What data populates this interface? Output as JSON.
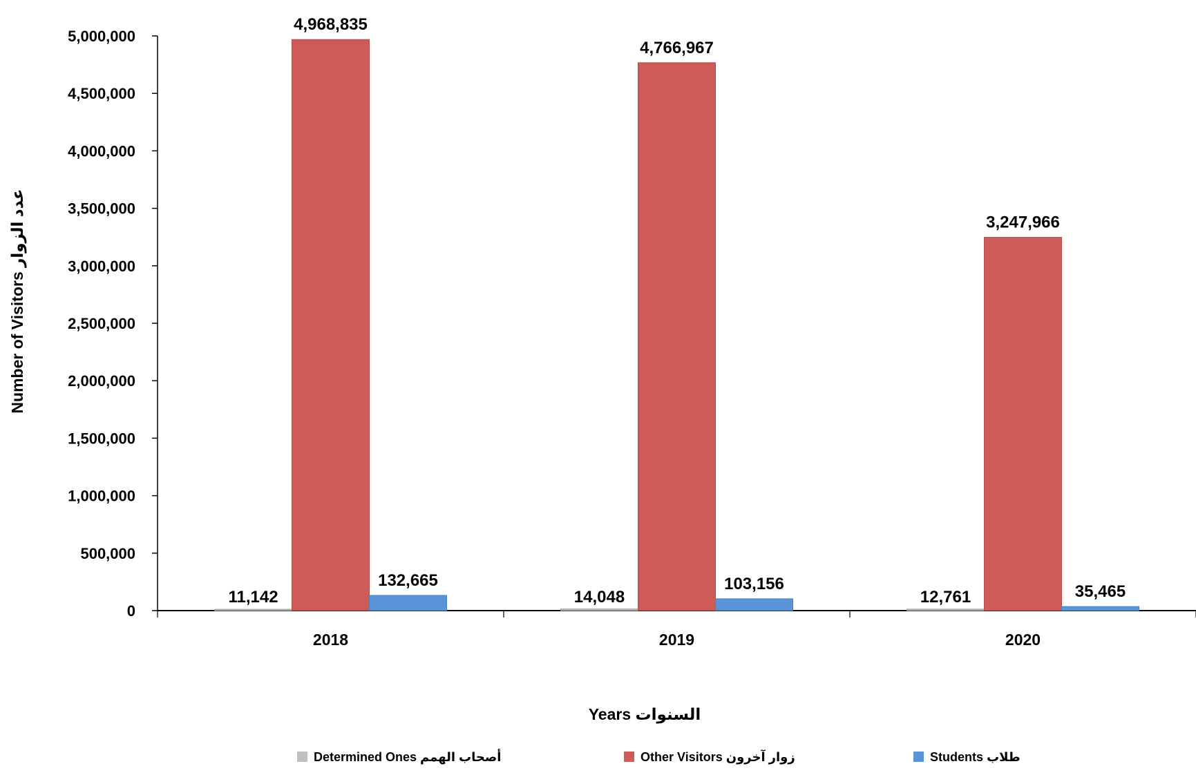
{
  "chart_data": {
    "type": "bar",
    "title": "",
    "xlabel": "Years  السنوات",
    "ylabel": "Number of Visitors  عدد الزوار",
    "categories": [
      "2018",
      "2019",
      "2020"
    ],
    "series": [
      {
        "name": "Determined Ones أصحاب الهمم",
        "color": "#BFBFBF",
        "values": [
          11142,
          14048,
          12761
        ],
        "labels": [
          "11,142",
          "14,048",
          "12,761"
        ]
      },
      {
        "name": "Other Visitors  زوار آخرون",
        "color": "#CD5B57",
        "values": [
          4968835,
          4766967,
          3247966
        ],
        "labels": [
          "4,968,835",
          "4,766,967",
          "3,247,966"
        ]
      },
      {
        "name": "Students طلاب",
        "color": "#5B93D8",
        "values": [
          132665,
          103156,
          35465
        ],
        "labels": [
          "132,665",
          "103,156",
          "35,465"
        ]
      }
    ],
    "ylim": [
      0,
      5000000
    ],
    "yticks": [
      0,
      500000,
      1000000,
      1500000,
      2000000,
      2500000,
      3000000,
      3500000,
      4000000,
      4500000,
      5000000
    ],
    "ytick_labels": [
      "0",
      "500,000",
      "1,000,000",
      "1,500,000",
      "2,000,000",
      "2,500,000",
      "3,000,000",
      "3,500,000",
      "4,000,000",
      "4,500,000",
      "5,000,000"
    ],
    "grid": false,
    "legend_position": "bottom"
  }
}
